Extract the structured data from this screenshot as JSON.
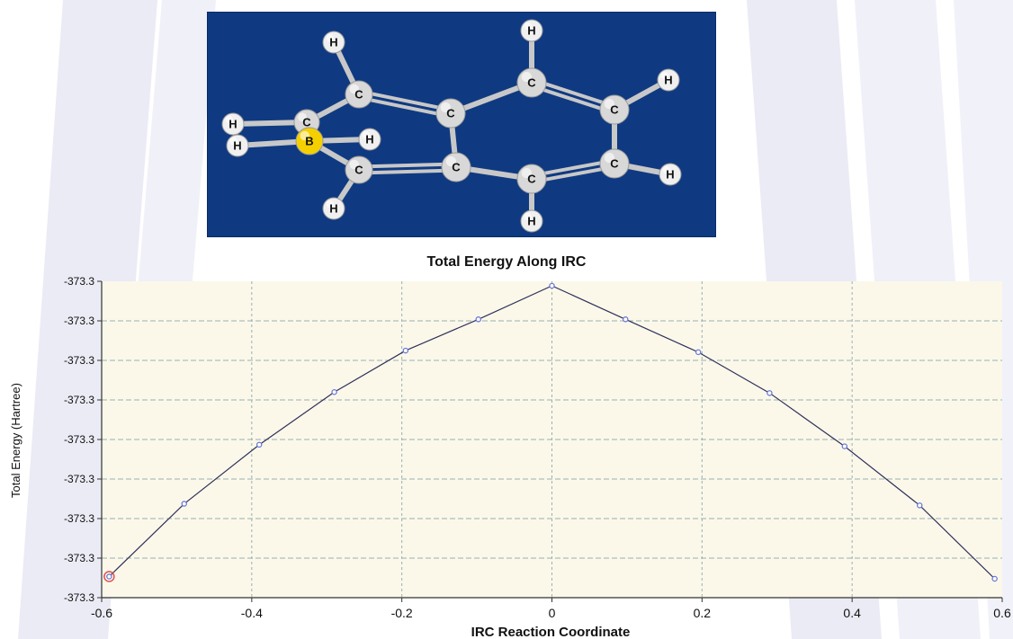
{
  "molecule": {
    "atoms": [
      {
        "label": "H",
        "kind": "H"
      },
      {
        "label": "C",
        "kind": "C"
      },
      {
        "label": "H",
        "kind": "H"
      },
      {
        "label": "C",
        "kind": "C"
      },
      {
        "label": "H",
        "kind": "H"
      },
      {
        "label": "H",
        "kind": "H"
      },
      {
        "label": "B",
        "kind": "B"
      },
      {
        "label": "H",
        "kind": "H"
      },
      {
        "label": "C",
        "kind": "C"
      },
      {
        "label": "H",
        "kind": "H"
      },
      {
        "label": "C",
        "kind": "C"
      },
      {
        "label": "C",
        "kind": "C"
      },
      {
        "label": "H",
        "kind": "H"
      },
      {
        "label": "C",
        "kind": "C"
      },
      {
        "label": "C",
        "kind": "C"
      },
      {
        "label": "H",
        "kind": "H"
      },
      {
        "label": "C",
        "kind": "C"
      },
      {
        "label": "H",
        "kind": "H"
      },
      {
        "label": "C",
        "kind": "C"
      },
      {
        "label": "H",
        "kind": "H"
      }
    ],
    "bonds": [
      [
        0,
        1,
        1
      ],
      [
        1,
        10,
        2
      ],
      [
        1,
        3,
        1
      ],
      [
        3,
        2,
        1
      ],
      [
        3,
        4,
        1
      ],
      [
        3,
        6,
        1
      ],
      [
        6,
        5,
        1
      ],
      [
        6,
        7,
        1
      ],
      [
        6,
        8,
        1
      ],
      [
        8,
        9,
        1
      ],
      [
        8,
        11,
        2
      ],
      [
        10,
        11,
        1
      ],
      [
        10,
        16,
        1
      ],
      [
        16,
        17,
        1
      ],
      [
        16,
        13,
        2
      ],
      [
        13,
        12,
        1
      ],
      [
        13,
        14,
        1
      ],
      [
        14,
        15,
        1
      ],
      [
        14,
        18,
        2
      ],
      [
        18,
        19,
        1
      ],
      [
        18,
        11,
        1
      ]
    ],
    "colors": {
      "C": "#d8d8d8",
      "H": "#f0f0f0",
      "B": "#f5d000"
    }
  },
  "chart_data": {
    "type": "line",
    "title": "Total Energy Along IRC",
    "xlabel": "IRC Reaction Coordinate",
    "ylabel": "Total Energy (Hartree)",
    "xlim": [
      -0.6,
      0.6
    ],
    "xticks": [
      -0.6,
      -0.4,
      -0.2,
      0,
      0.2,
      0.4,
      0.6
    ],
    "xtick_labels": [
      "-0.6",
      "-0.4",
      "-0.2",
      "0",
      "0.2",
      "0.4",
      "0.6"
    ],
    "ytick_labels": [
      "-373.3",
      "-373.3",
      "-373.3",
      "-373.3",
      "-373.3",
      "-373.3",
      "-373.3",
      "-373.3",
      "-373.3"
    ],
    "ylim_relative": [
      0,
      1
    ],
    "grid": true,
    "series": [
      {
        "x": [
          -0.59,
          -0.49,
          -0.39,
          -0.29,
          -0.195,
          -0.098,
          0,
          0.098,
          0.195,
          0.29,
          0.39,
          0.49,
          0.59
        ],
        "y": [
          0.072,
          0.3,
          0.485,
          0.65,
          0.78,
          0.878,
          0.983,
          0.878,
          0.775,
          0.647,
          0.48,
          0.295,
          0.065
        ]
      }
    ],
    "highlighted_point_index": 0,
    "colors": {
      "line": "#30305a",
      "marker": "#6a7ad8",
      "highlight": "#e05050",
      "plot_bg": "#fbf8ea",
      "grid": "#9ab0b0"
    }
  }
}
